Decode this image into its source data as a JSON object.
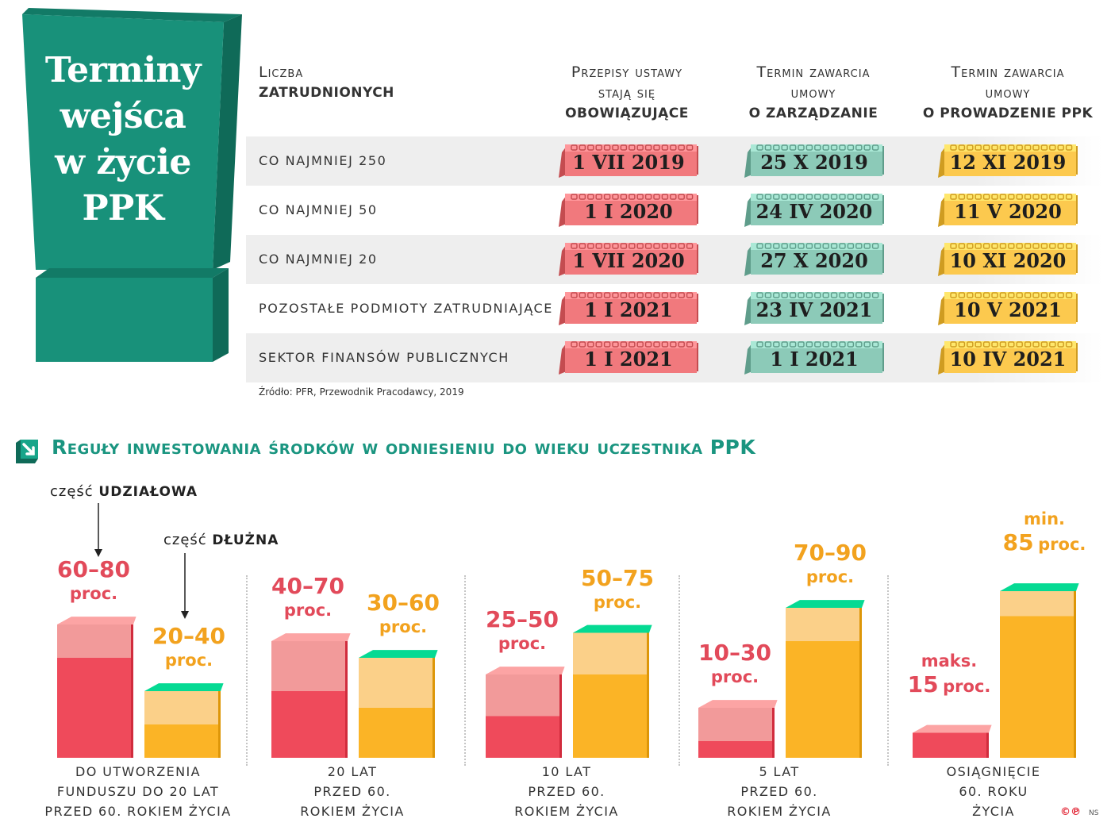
{
  "title": [
    "Terminy",
    "wejśca",
    "w życie",
    "PPK"
  ],
  "table": {
    "headers": [
      {
        "line1": "Liczba",
        "line2": "",
        "bold": "zatrudnionych"
      },
      {
        "line1": "Przepisy ustawy",
        "line2": "stają się",
        "bold": "obowiązujące"
      },
      {
        "line1": "Termin zawarcia",
        "line2": "umowy",
        "bold": "o zarządzanie"
      },
      {
        "line1": "Termin zawarcia",
        "line2": "umowy",
        "bold": "o prowadzenie PPK"
      }
    ],
    "rows": [
      {
        "label": "co najmniej 250",
        "dates": [
          "1 VII 2019",
          "25 X 2019",
          "12 XI 2019"
        ]
      },
      {
        "label": "co najmniej 50",
        "dates": [
          "1 I 2020",
          "24 IV 2020",
          "11 V 2020"
        ]
      },
      {
        "label": "co najmniej 20",
        "dates": [
          "1 VII 2020",
          "27 X 2020",
          "10 XI 2020"
        ]
      },
      {
        "label": "pozostałe podmioty zatrudniające",
        "dates": [
          "1 I 2021",
          "23 IV 2021",
          "10 V 2021"
        ]
      },
      {
        "label": "sektor finansów publicznych",
        "dates": [
          "1 I 2021",
          "1 I 2021",
          "10 IV 2021"
        ]
      }
    ],
    "calendar_colors": [
      "#f1797d",
      "#8ccab8",
      "#fcc94e"
    ],
    "source": "Źródło: PFR, Przewodnik Pracodawcy, 2019"
  },
  "section_title": "Reguły inwestowania środków w odniesieniu do wieku uczestnika PPK",
  "legend": {
    "equity_prefix": "część ",
    "equity_bold": "udziałowa",
    "debt_prefix": "część ",
    "debt_bold": "dłużna"
  },
  "chart_data": {
    "type": "bar",
    "title": "Reguły inwestowania środków w odniesieniu do wieku uczestnika PPK",
    "categories": [
      "do utworzenia funduszu do 20 lat przed 60. rokiem życia",
      "20 lat przed 60. rokiem życia",
      "10 lat przed 60. rokiem życia",
      "5 lat przed 60. rokiem życia",
      "osiągnięcie 60. roku życia"
    ],
    "category_lines": [
      [
        "do utworzenia",
        "funduszu do 20 lat",
        "przed 60. rokiem życia"
      ],
      [
        "20 lat",
        "przed 60.",
        "rokiem życia"
      ],
      [
        "10 lat",
        "przed 60.",
        "rokiem życia"
      ],
      [
        "5 lat",
        "przed 60.",
        "rokiem życia"
      ],
      [
        "osiągnięcie",
        "60. roku",
        "życia"
      ]
    ],
    "series": [
      {
        "name": "część udziałowa",
        "ranges": [
          [
            60,
            80
          ],
          [
            40,
            70
          ],
          [
            25,
            50
          ],
          [
            10,
            30
          ],
          [
            0,
            15
          ]
        ],
        "color": "#ef4a5b",
        "color_light": "#f29a9a",
        "labels_num": [
          "60–80",
          "40–70",
          "25–50",
          "10–30",
          "15"
        ],
        "labels_unit": [
          "proc.",
          "proc.",
          "proc.",
          "proc.",
          "proc."
        ],
        "labels_prefix": [
          "",
          "",
          "",
          "",
          "maks."
        ]
      },
      {
        "name": "część dłużna",
        "ranges": [
          [
            20,
            40
          ],
          [
            30,
            60
          ],
          [
            50,
            75
          ],
          [
            70,
            90
          ],
          [
            85,
            100
          ]
        ],
        "color": "#fbb426",
        "color_light": "#fbd089",
        "labels_num": [
          "20–40",
          "30–60",
          "50–75",
          "70–90",
          "85"
        ],
        "labels_unit": [
          "proc.",
          "proc.",
          "proc.",
          "proc.",
          "proc."
        ],
        "labels_prefix": [
          "",
          "",
          "",
          "",
          "min."
        ]
      }
    ],
    "ylim": [
      0,
      100
    ],
    "xlabel": "",
    "ylabel": ""
  },
  "footer": {
    "logo": "©℗",
    "initials": "NS"
  }
}
